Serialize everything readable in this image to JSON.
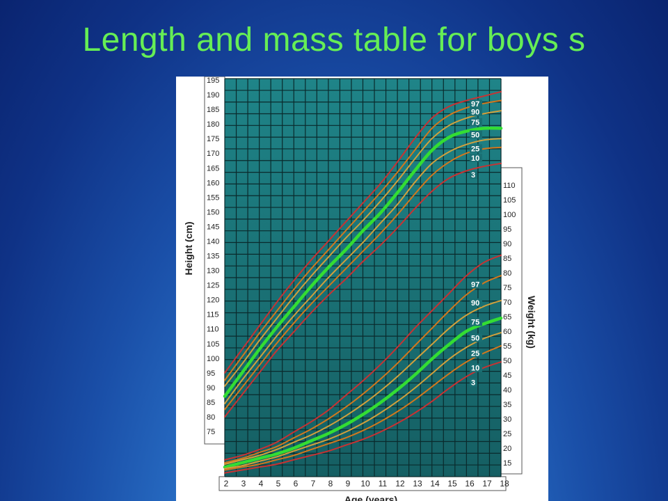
{
  "slide": {
    "title": "Length and mass table for boys s"
  },
  "chart_data": {
    "type": "line",
    "title": "",
    "xlabel": "Age (years)",
    "ylabel_left": "Height (cm)",
    "ylabel_right": "Weight (kg)",
    "x_ticks": [
      2,
      3,
      4,
      5,
      6,
      7,
      8,
      9,
      10,
      11,
      12,
      13,
      14,
      15,
      16,
      17,
      18
    ],
    "height_ticks": [
      75,
      80,
      85,
      90,
      95,
      100,
      105,
      110,
      115,
      120,
      125,
      130,
      135,
      140,
      145,
      150,
      155,
      160,
      165,
      170,
      175,
      180,
      185,
      190,
      195
    ],
    "weight_ticks": [
      15,
      20,
      25,
      30,
      35,
      40,
      45,
      50,
      55,
      60,
      65,
      70,
      75,
      80,
      85,
      90,
      95,
      100,
      105,
      110
    ],
    "xlim": [
      2,
      18
    ],
    "height_ylim": [
      68,
      197
    ],
    "colors": {
      "grid_bg": "#1a7478",
      "grid_line": "#0a2a2c",
      "p3_p97": "#c83232",
      "p10_p90": "#d2781e",
      "p25_p75": "#d2a03c",
      "p50": "#33dd33"
    },
    "height_series": [
      {
        "name": "97",
        "x": [
          2,
          3,
          4,
          5,
          6,
          7,
          8,
          9,
          10,
          11,
          12,
          13,
          14,
          15,
          16,
          17,
          18
        ],
        "values": [
          95.0,
          103.0,
          111.0,
          119.0,
          126.5,
          133.5,
          140.0,
          146.5,
          153.0,
          159.5,
          167.0,
          175.0,
          182.0,
          186.0,
          188.0,
          189.5,
          191.0
        ]
      },
      {
        "name": "90",
        "x": [
          2,
          3,
          4,
          5,
          6,
          7,
          8,
          9,
          10,
          11,
          12,
          13,
          14,
          15,
          16,
          17,
          18
        ],
        "values": [
          92.5,
          100.5,
          108.5,
          116.0,
          123.5,
          130.5,
          137.0,
          143.5,
          150.0,
          156.5,
          163.5,
          171.0,
          178.5,
          183.0,
          185.5,
          187.0,
          188.0
        ]
      },
      {
        "name": "75",
        "x": [
          2,
          3,
          4,
          5,
          6,
          7,
          8,
          9,
          10,
          11,
          12,
          13,
          14,
          15,
          16,
          17,
          18
        ],
        "values": [
          90.5,
          98.0,
          106.0,
          113.5,
          121.0,
          128.0,
          134.5,
          141.0,
          147.0,
          153.5,
          160.5,
          168.0,
          175.0,
          179.5,
          182.0,
          183.5,
          184.5
        ]
      },
      {
        "name": "50",
        "x": [
          2,
          3,
          4,
          5,
          6,
          7,
          8,
          9,
          10,
          11,
          12,
          13,
          14,
          15,
          16,
          17,
          18
        ],
        "values": [
          87.0,
          95.0,
          103.0,
          110.5,
          117.5,
          124.5,
          131.0,
          137.0,
          143.5,
          149.5,
          156.5,
          164.0,
          171.0,
          175.5,
          177.5,
          178.5,
          178.5
        ]
      },
      {
        "name": "25",
        "x": [
          2,
          3,
          4,
          5,
          6,
          7,
          8,
          9,
          10,
          11,
          12,
          13,
          14,
          15,
          16,
          17,
          18
        ],
        "values": [
          84.5,
          92.5,
          100.0,
          107.5,
          114.5,
          121.0,
          127.5,
          133.5,
          139.5,
          146.0,
          152.5,
          160.0,
          166.5,
          170.5,
          173.0,
          174.5,
          175.0
        ]
      },
      {
        "name": "10",
        "x": [
          2,
          3,
          4,
          5,
          6,
          7,
          8,
          9,
          10,
          11,
          12,
          13,
          14,
          15,
          16,
          17,
          18
        ],
        "values": [
          82.5,
          90.0,
          97.5,
          105.0,
          112.0,
          118.5,
          124.5,
          130.5,
          136.5,
          142.5,
          149.0,
          156.0,
          162.5,
          167.0,
          170.0,
          171.5,
          172.0
        ]
      },
      {
        "name": "3",
        "x": [
          2,
          3,
          4,
          5,
          6,
          7,
          8,
          9,
          10,
          11,
          12,
          13,
          14,
          15,
          16,
          17,
          18
        ],
        "values": [
          80.0,
          87.5,
          95.0,
          102.5,
          109.0,
          115.5,
          121.5,
          127.0,
          133.0,
          138.5,
          144.5,
          151.0,
          157.0,
          161.5,
          164.0,
          165.5,
          166.5
        ]
      }
    ],
    "weight_series": [
      {
        "name": "97",
        "x": [
          2,
          3,
          4,
          5,
          6,
          7,
          8,
          9,
          10,
          11,
          12,
          13,
          14,
          15,
          16,
          17,
          18
        ],
        "values": [
          16.0,
          17.5,
          19.5,
          22.0,
          25.5,
          29.0,
          33.0,
          38.0,
          43.0,
          48.5,
          54.5,
          61.0,
          67.0,
          73.0,
          79.0,
          83.5,
          86.0
        ]
      },
      {
        "name": "90",
        "x": [
          2,
          3,
          4,
          5,
          6,
          7,
          8,
          9,
          10,
          11,
          12,
          13,
          14,
          15,
          16,
          17,
          18
        ],
        "values": [
          15.0,
          16.5,
          18.5,
          20.5,
          23.5,
          26.5,
          30.0,
          34.0,
          38.5,
          43.5,
          49.0,
          55.0,
          61.0,
          67.0,
          72.5,
          76.5,
          79.0
        ]
      },
      {
        "name": "75",
        "x": [
          2,
          3,
          4,
          5,
          6,
          7,
          8,
          9,
          10,
          11,
          12,
          13,
          14,
          15,
          16,
          17,
          18
        ],
        "values": [
          14.5,
          16.0,
          17.5,
          19.5,
          22.0,
          24.5,
          27.5,
          31.0,
          35.0,
          39.5,
          44.5,
          50.0,
          55.5,
          61.0,
          65.5,
          68.5,
          70.5
        ]
      },
      {
        "name": "50",
        "x": [
          2,
          3,
          4,
          5,
          6,
          7,
          8,
          9,
          10,
          11,
          12,
          13,
          14,
          15,
          16,
          17,
          18
        ],
        "values": [
          13.5,
          15.0,
          16.5,
          18.0,
          20.0,
          22.5,
          25.0,
          28.0,
          31.5,
          35.5,
          40.0,
          45.0,
          50.5,
          55.5,
          60.0,
          62.5,
          64.5
        ]
      },
      {
        "name": "25",
        "x": [
          2,
          3,
          4,
          5,
          6,
          7,
          8,
          9,
          10,
          11,
          12,
          13,
          14,
          15,
          16,
          17,
          18
        ],
        "values": [
          13.0,
          14.0,
          15.5,
          17.0,
          19.0,
          21.0,
          23.0,
          25.5,
          28.5,
          32.0,
          36.0,
          40.5,
          45.5,
          50.5,
          54.5,
          57.5,
          59.5
        ]
      },
      {
        "name": "10",
        "x": [
          2,
          3,
          4,
          5,
          6,
          7,
          8,
          9,
          10,
          11,
          12,
          13,
          14,
          15,
          16,
          17,
          18
        ],
        "values": [
          12.5,
          13.5,
          14.5,
          16.0,
          17.5,
          19.5,
          21.5,
          23.5,
          26.0,
          29.0,
          32.5,
          36.5,
          41.0,
          45.5,
          49.5,
          52.5,
          55.0
        ]
      },
      {
        "name": "3",
        "x": [
          2,
          3,
          4,
          5,
          6,
          7,
          8,
          9,
          10,
          11,
          12,
          13,
          14,
          15,
          16,
          17,
          18
        ],
        "values": [
          11.5,
          12.5,
          13.5,
          14.5,
          16.0,
          17.5,
          19.0,
          21.0,
          23.0,
          25.5,
          28.5,
          32.0,
          36.0,
          40.5,
          44.5,
          47.5,
          49.5
        ]
      }
    ]
  }
}
